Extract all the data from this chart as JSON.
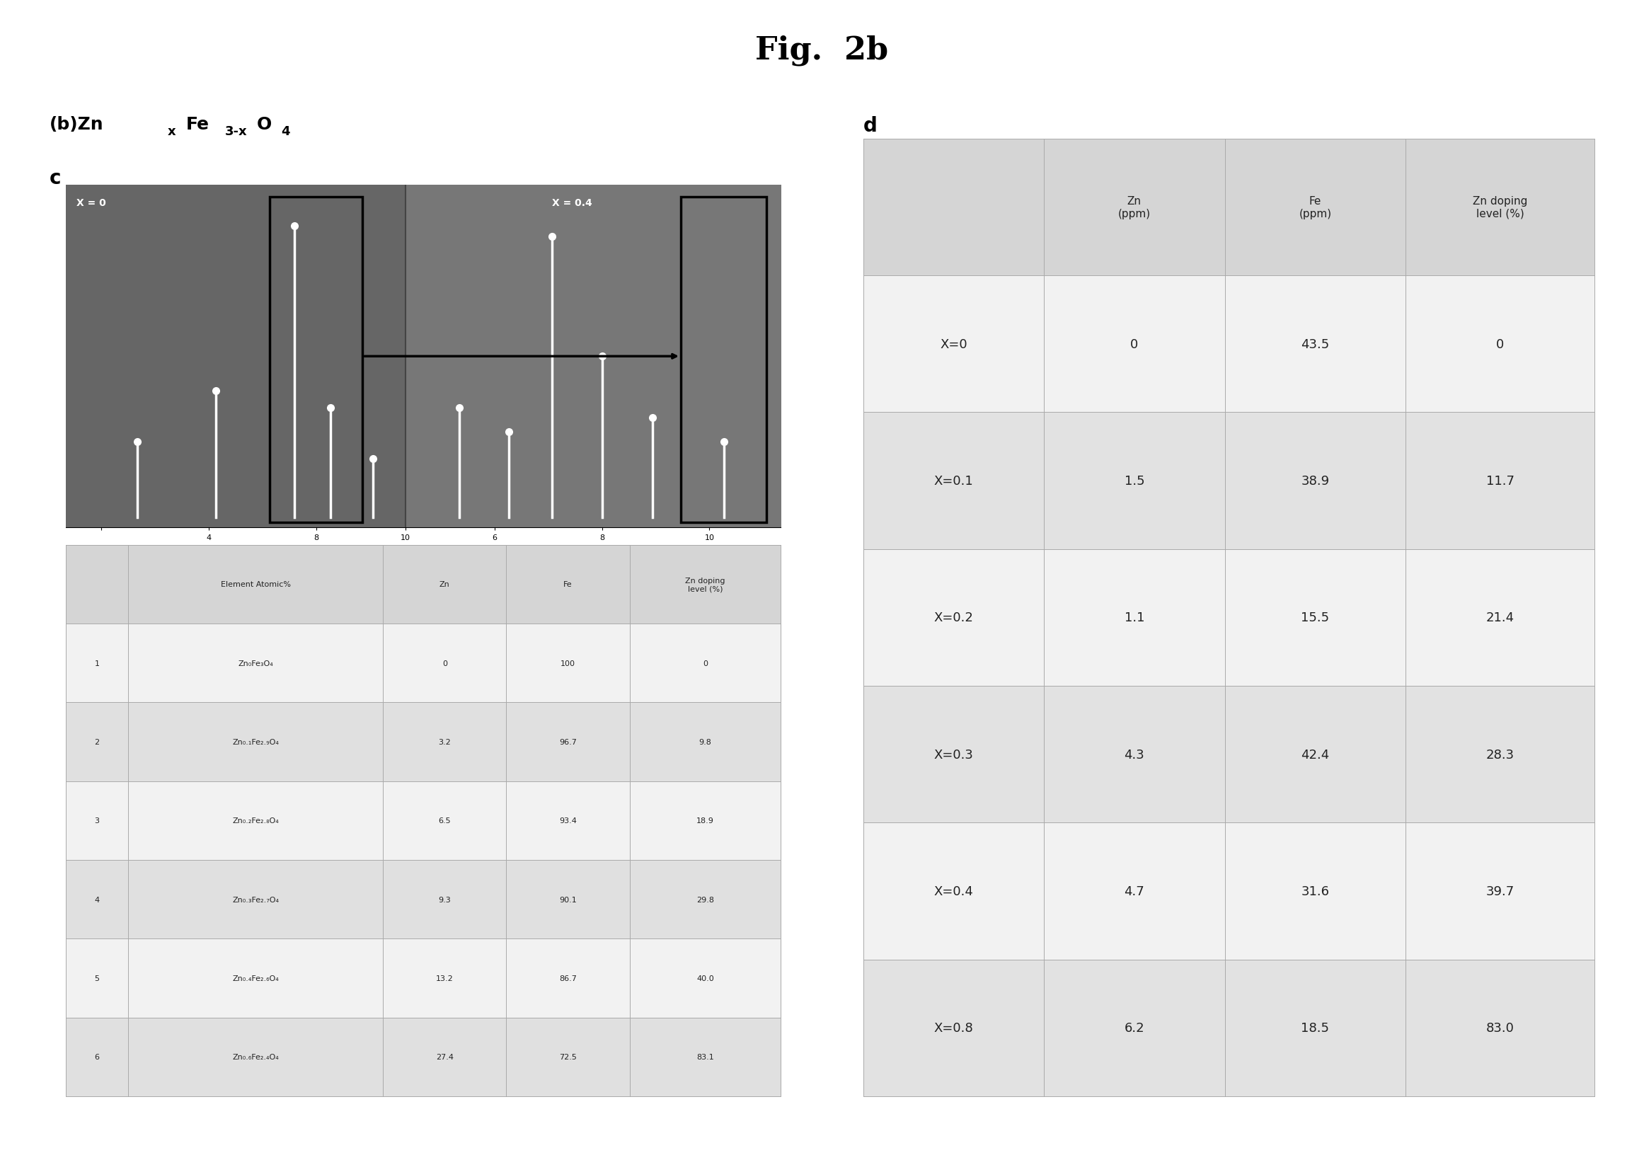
{
  "title": "Fig.  2b",
  "title_fontsize": 32,
  "title_fontweight": "bold",
  "left_table_headers": [
    "",
    "Element Atomic%",
    "Zn",
    "Fe",
    "Zn doping\nlevel (%)"
  ],
  "left_table_rows": [
    [
      "1",
      "Zn₀Fe₃O₄",
      "0",
      "100",
      "0"
    ],
    [
      "2",
      "Zn₀.₁Fe₂.₉O₄",
      "3.2",
      "96.7",
      "9.8"
    ],
    [
      "3",
      "Zn₀.₂Fe₂.₈O₄",
      "6.5",
      "93.4",
      "18.9"
    ],
    [
      "4",
      "Zn₀.₃Fe₂.₇O₄",
      "9.3",
      "90.1",
      "29.8"
    ],
    [
      "5",
      "Zn₀.₄Fe₂.₆O₄",
      "13.2",
      "86.7",
      "40.0"
    ],
    [
      "6",
      "Zn₀.₆Fe₂.₄O₄",
      "27.4",
      "72.5",
      "83.1"
    ]
  ],
  "right_table_headers": [
    "",
    "Zn\n(ppm)",
    "Fe\n(ppm)",
    "Zn doping\nlevel (%)"
  ],
  "right_table_rows": [
    [
      "X=0",
      "0",
      "43.5",
      "0"
    ],
    [
      "X=0.1",
      "1.5",
      "38.9",
      "11.7"
    ],
    [
      "X=0.2",
      "1.1",
      "15.5",
      "21.4"
    ],
    [
      "X=0.3",
      "4.3",
      "42.4",
      "28.3"
    ],
    [
      "X=0.4",
      "4.7",
      "31.6",
      "39.7"
    ],
    [
      "X=0.8",
      "6.2",
      "18.5",
      "83.0"
    ]
  ]
}
